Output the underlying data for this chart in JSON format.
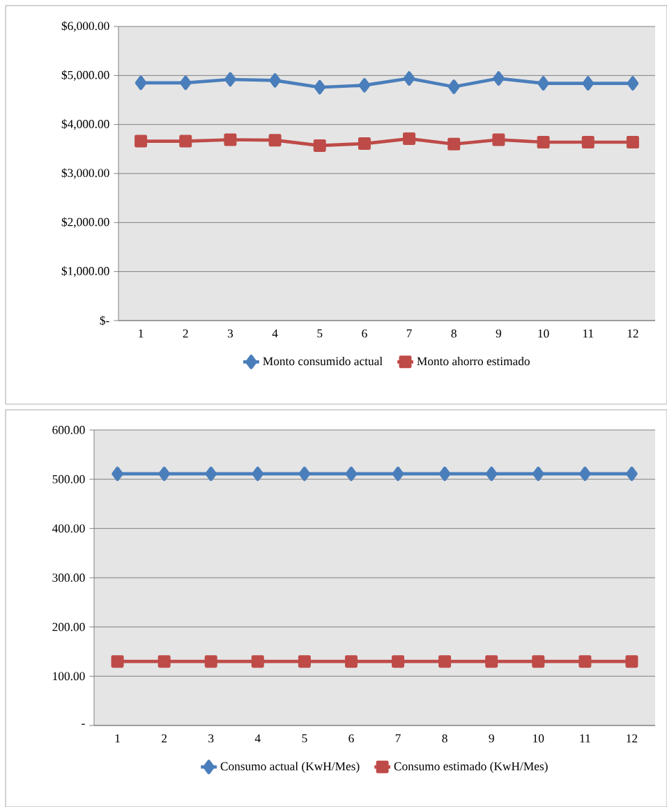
{
  "chart_data": [
    {
      "type": "line",
      "categories": [
        "1",
        "2",
        "3",
        "4",
        "5",
        "6",
        "7",
        "8",
        "9",
        "10",
        "11",
        "12"
      ],
      "series": [
        {
          "name": "Monto consumido actual",
          "color": "#4a7ebb",
          "marker": "diamond",
          "values": [
            4850,
            4850,
            4920,
            4900,
            4760,
            4800,
            4940,
            4770,
            4940,
            4840,
            4840,
            4840
          ]
        },
        {
          "name": "Monto ahorro estimado",
          "color": "#be4b48",
          "marker": "square",
          "values": [
            3660,
            3660,
            3690,
            3680,
            3570,
            3610,
            3710,
            3600,
            3690,
            3640,
            3640,
            3640
          ]
        }
      ],
      "ylim": [
        0,
        6000
      ],
      "yticks": [
        {
          "value": 0,
          "label": "$-"
        },
        {
          "value": 1000,
          "label": "$1,000.00"
        },
        {
          "value": 2000,
          "label": "$2,000.00"
        },
        {
          "value": 3000,
          "label": "$3,000.00"
        },
        {
          "value": 4000,
          "label": "$4,000.00"
        },
        {
          "value": 5000,
          "label": "$5,000.00"
        },
        {
          "value": 6000,
          "label": "$6,000.00"
        }
      ],
      "grid": "y",
      "legend": "bottom",
      "line_style": "solid"
    },
    {
      "type": "line",
      "categories": [
        "1",
        "2",
        "3",
        "4",
        "5",
        "6",
        "7",
        "8",
        "9",
        "10",
        "11",
        "12"
      ],
      "series": [
        {
          "name": "Consumo actual (KwH/Mes)",
          "color": "#4a7ebb",
          "marker": "diamond",
          "values": [
            511,
            511,
            511,
            511,
            511,
            511,
            511,
            511,
            511,
            511,
            511,
            511
          ]
        },
        {
          "name": "Consumo estimado (KwH/Mes)",
          "color": "#be4b48",
          "marker": "square",
          "values": [
            130,
            130,
            130,
            130,
            130,
            130,
            130,
            130,
            130,
            130,
            130,
            130
          ]
        }
      ],
      "ylim": [
        0,
        600
      ],
      "yticks": [
        {
          "value": 0,
          "label": "-"
        },
        {
          "value": 100,
          "label": "100.00"
        },
        {
          "value": 200,
          "label": "200.00"
        },
        {
          "value": 300,
          "label": "300.00"
        },
        {
          "value": 400,
          "label": "400.00"
        },
        {
          "value": 500,
          "label": "500.00"
        },
        {
          "value": 600,
          "label": "600.00"
        }
      ],
      "grid": "y",
      "legend": "bottom",
      "line_style": "solid"
    }
  ]
}
